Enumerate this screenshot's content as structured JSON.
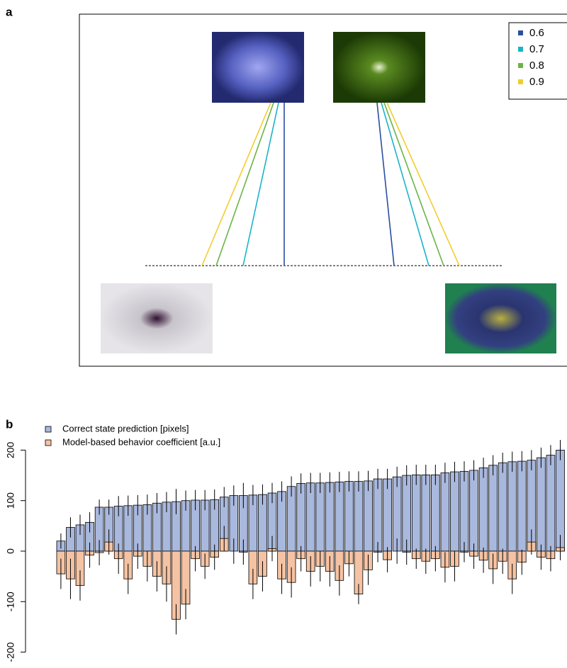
{
  "chart_data": [
    {
      "type": "diagram",
      "panel": "a",
      "series": [
        {
          "name": "0.6",
          "color": "#2b4ea0"
        },
        {
          "name": "0.7",
          "color": "#1bb3c9"
        },
        {
          "name": "0.8",
          "color": "#6ab446"
        },
        {
          "name": "0.9",
          "color": "#f2cd2f"
        }
      ]
    },
    {
      "type": "bar",
      "panel": "b",
      "ylim": [
        -220,
        210
      ],
      "yticks": [
        -200,
        -100,
        0,
        100,
        200
      ],
      "series": [
        {
          "name": "Correct state prediction [pixels]",
          "color": "#a9b8dd",
          "values": [
            20,
            47,
            52,
            57,
            87,
            87,
            89,
            90,
            91,
            92,
            95,
            97,
            98,
            100,
            101,
            101,
            102,
            107,
            110,
            110,
            111,
            112,
            115,
            118,
            128,
            134,
            135,
            135,
            136,
            137,
            138,
            138,
            139,
            143,
            143,
            147,
            150,
            151,
            151,
            151,
            155,
            157,
            158,
            160,
            165,
            170,
            175,
            177,
            178,
            180,
            185,
            190,
            200
          ],
          "errors": [
            15,
            20,
            20,
            20,
            15,
            15,
            20,
            20,
            20,
            20,
            20,
            20,
            25,
            20,
            20,
            20,
            20,
            20,
            20,
            25,
            20,
            20,
            20,
            20,
            20,
            20,
            20,
            20,
            20,
            20,
            20,
            20,
            20,
            20,
            20,
            20,
            20,
            20,
            20,
            20,
            20,
            20,
            20,
            20,
            20,
            20,
            20,
            20,
            20,
            20,
            20,
            20,
            20
          ]
        },
        {
          "name": "Model-based behavior coefficient [a.u.]",
          "color": "#f5c3a3",
          "values": [
            -45,
            -55,
            -68,
            -8,
            -3,
            18,
            -15,
            -55,
            -10,
            -30,
            -50,
            -65,
            -135,
            -105,
            -15,
            -30,
            -12,
            25,
            0,
            -2,
            -65,
            -50,
            5,
            -55,
            -62,
            -15,
            -40,
            -30,
            -40,
            -58,
            -25,
            -85,
            -37,
            -2,
            -17,
            0,
            -2,
            -15,
            -20,
            -15,
            -32,
            -30,
            -2,
            -10,
            -18,
            -35,
            -20,
            -55,
            -22,
            18,
            -12,
            -15,
            7
          ],
          "errors": [
            30,
            40,
            30,
            25,
            25,
            25,
            30,
            30,
            25,
            30,
            30,
            35,
            30,
            30,
            25,
            25,
            25,
            25,
            25,
            25,
            30,
            30,
            25,
            30,
            30,
            25,
            30,
            30,
            30,
            30,
            25,
            20,
            30,
            20,
            25,
            25,
            25,
            20,
            25,
            25,
            30,
            30,
            20,
            25,
            25,
            30,
            25,
            30,
            25,
            25,
            25,
            25,
            25
          ]
        }
      ]
    }
  ]
}
